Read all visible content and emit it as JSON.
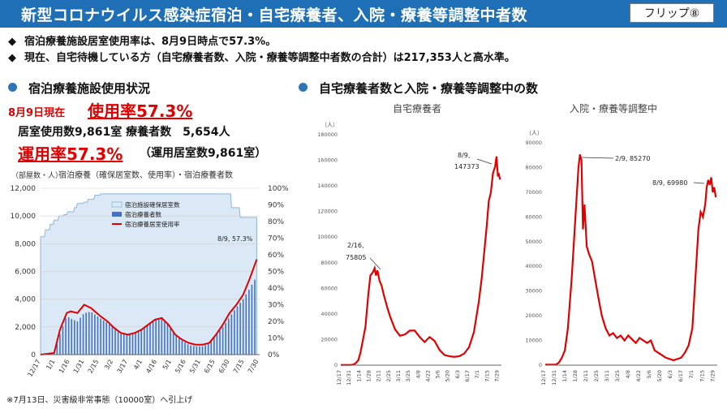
{
  "header": {
    "title": "新型コロナウイルス感染症宿泊・自宅療養者、入院・療養等調整中者数",
    "badge": "フリップ⑧"
  },
  "bullets": [
    "宿泊療養施設居室使用率は、8月9日時点で57.3%。",
    "現在、自宅待機している方（自宅療養者数、入院・療養等調整中者数の合計）は217,353人と高水準。"
  ],
  "bullet_icon": "diamond-icon",
  "left": {
    "heading": "宿泊療養施設使用状況",
    "date_label": "8月9日現在",
    "usage_rate": "使用率57.3%",
    "rooms_line": "居室使用数9,861室 療養者数　5,654人",
    "operation_rate": "運用率57.3%",
    "operation_note": "（運用居室数9,861室）",
    "footnote": "※7月13日、災害級非常事態（10000室）へ引上げ"
  },
  "right": {
    "heading": "自宅療養者数と入院・療養等調整中の数"
  },
  "colors": {
    "header": "#1f6fb6",
    "accent_red": "#e00000",
    "bar_blue": "#4472c4",
    "area": "#dbe8f5"
  },
  "chart_data": [
    {
      "type": "bar",
      "title": "宿泊療養（確保居室数、使用率）・宿泊療養者数",
      "ylabel": "（部屋数・人）",
      "ylim": [
        0,
        12000
      ],
      "y2lim": [
        0,
        100
      ],
      "y_ticks": [
        "0",
        "2,000",
        "4,000",
        "6,000",
        "8,000",
        "10,000",
        "12,000"
      ],
      "y2_ticks": [
        "0%",
        "10%",
        "20%",
        "30%",
        "40%",
        "50%",
        "60%",
        "70%",
        "80%",
        "90%",
        "100%"
      ],
      "x_ticks": [
        "12/17",
        "1/1",
        "1/16",
        "1/31",
        "2/15",
        "3/2",
        "3/17",
        "4/1",
        "4/16",
        "5/1",
        "5/16",
        "5/31",
        "6/15",
        "6/30",
        "7/15",
        "7/30"
      ],
      "legend": [
        "宿泊施設確保居室数",
        "宿泊療養者数",
        "宿泊療養居室使用率"
      ],
      "legend_position": "top-left",
      "annotation": "8/9, 57.3%",
      "series": [
        {
          "name": "宿泊施設確保居室数",
          "kind": "area",
          "x": [
            0,
            4,
            5,
            9,
            10,
            13,
            14,
            18,
            19,
            23,
            24,
            27,
            28,
            34,
            35,
            37,
            38,
            44,
            45,
            48,
            49,
            55,
            56,
            61,
            62,
            196,
            197,
            205,
            206,
            223
          ],
          "values": [
            8500,
            8500,
            9000,
            9000,
            9400,
            9400,
            9700,
            9700,
            10000,
            10000,
            10100,
            10100,
            10300,
            10300,
            10600,
            10600,
            10900,
            10900,
            11000,
            11000,
            11200,
            11200,
            11500,
            11500,
            11600,
            11600,
            10600,
            10600,
            9900,
            9900
          ]
        },
        {
          "name": "宿泊療養者数",
          "kind": "bar",
          "x": [
            0,
            14,
            20,
            27,
            31,
            38,
            45,
            52,
            56,
            62,
            69,
            76,
            83,
            90,
            97,
            104,
            111,
            118,
            125,
            132,
            139,
            146,
            153,
            160,
            167,
            174,
            181,
            188,
            195,
            202,
            209,
            216,
            223
          ],
          "values": [
            0,
            50,
            1500,
            2800,
            2600,
            2400,
            3000,
            3100,
            2900,
            2600,
            2300,
            1900,
            1600,
            1500,
            1600,
            1800,
            2200,
            2500,
            2600,
            2100,
            1400,
            1000,
            700,
            600,
            600,
            800,
            1400,
            2000,
            2700,
            3400,
            4000,
            4800,
            5654
          ]
        },
        {
          "name": "宿泊療養居室使用率",
          "kind": "line",
          "axis": "right",
          "x": [
            0,
            14,
            20,
            27,
            31,
            38,
            45,
            52,
            56,
            62,
            69,
            76,
            83,
            90,
            97,
            104,
            111,
            118,
            125,
            132,
            139,
            146,
            153,
            160,
            167,
            174,
            181,
            188,
            195,
            202,
            209,
            216,
            223
          ],
          "values": [
            0,
            1,
            15,
            25,
            26,
            25,
            30,
            28,
            26,
            23,
            20,
            16,
            13,
            12,
            13,
            15,
            18,
            21,
            22,
            18,
            12,
            9,
            7,
            6,
            6,
            7,
            12,
            18,
            25,
            30,
            36,
            46,
            57.3
          ]
        }
      ]
    },
    {
      "type": "line",
      "title": "自宅療養者",
      "ylabel": "（人）",
      "ylim": [
        0,
        180000
      ],
      "y_ticks": [
        "0",
        "20000",
        "40000",
        "60000",
        "80000",
        "100000",
        "120000",
        "140000",
        "160000",
        "180000"
      ],
      "x_ticks": [
        "12/17",
        "12/31",
        "1/14",
        "1/28",
        "2/11",
        "2/25",
        "3/11",
        "3/25",
        "4/8",
        "4/22",
        "5/6",
        "5/20",
        "6/3",
        "6/17",
        "7/1",
        "7/15",
        "7/29"
      ],
      "annotations": [
        "2/16,",
        "75805",
        "8/9,",
        "147373"
      ],
      "series": [
        {
          "name": "",
          "x": [
            0,
            14,
            18,
            21,
            25,
            28,
            35,
            39,
            42,
            46,
            48,
            50,
            52,
            55,
            58,
            61,
            66,
            70,
            77,
            84,
            91,
            98,
            105,
            112,
            119,
            126,
            133,
            140,
            147,
            154,
            161,
            168,
            175,
            182,
            189,
            196,
            200,
            203,
            207,
            210,
            213,
            216,
            219,
            221,
            223,
            224,
            226
          ],
          "values": [
            200,
            200,
            500,
            1500,
            4000,
            10000,
            30000,
            55000,
            70000,
            73000,
            75805,
            70000,
            74000,
            66000,
            62000,
            55000,
            45000,
            38000,
            28000,
            23000,
            24000,
            27000,
            27000,
            22000,
            18000,
            22000,
            19000,
            12000,
            8000,
            7000,
            6500,
            7000,
            9000,
            14000,
            26000,
            50000,
            68000,
            85000,
            108000,
            128000,
            135000,
            150000,
            155000,
            163000,
            147373,
            150000,
            145000
          ]
        }
      ]
    },
    {
      "type": "line",
      "title": "入院・療養等調整中",
      "ylabel": "（人）",
      "ylim": [
        0,
        90000
      ],
      "y_ticks": [
        "0",
        "10000",
        "20000",
        "30000",
        "40000",
        "50000",
        "60000",
        "70000",
        "80000",
        "90000"
      ],
      "x_ticks": [
        "12/17",
        "12/31",
        "1/14",
        "1/28",
        "2/11",
        "2/25",
        "3/11",
        "3/25",
        "4/8",
        "4/22",
        "5/6",
        "5/20",
        "6/3",
        "6/17",
        "7/1",
        "7/15",
        "7/29"
      ],
      "annotations": [
        "2/9, 85270",
        "8/9, 69980"
      ],
      "series": [
        {
          "name": "",
          "x": [
            0,
            14,
            18,
            22,
            26,
            30,
            35,
            38,
            42,
            44,
            46,
            48,
            50,
            52,
            55,
            58,
            62,
            66,
            70,
            75,
            80,
            85,
            90,
            95,
            100,
            105,
            110,
            115,
            120,
            125,
            130,
            135,
            140,
            145,
            150,
            155,
            160,
            165,
            170,
            175,
            180,
            185,
            190,
            195,
            200,
            203,
            206,
            209,
            212,
            214,
            216,
            218,
            220,
            222,
            224,
            226
          ],
          "values": [
            200,
            200,
            1000,
            3000,
            6000,
            15000,
            35000,
            50000,
            70000,
            80000,
            85270,
            83000,
            55000,
            65000,
            48000,
            45000,
            42000,
            35000,
            28000,
            20000,
            15000,
            12000,
            13000,
            11000,
            12000,
            10000,
            12000,
            10500,
            9000,
            11000,
            10000,
            9000,
            10000,
            6000,
            5000,
            4000,
            3000,
            2500,
            2000,
            2500,
            3000,
            5000,
            8000,
            15000,
            40000,
            55000,
            62000,
            60000,
            65000,
            72000,
            75000,
            73000,
            76000,
            69980,
            72000,
            68000
          ]
        }
      ]
    }
  ]
}
